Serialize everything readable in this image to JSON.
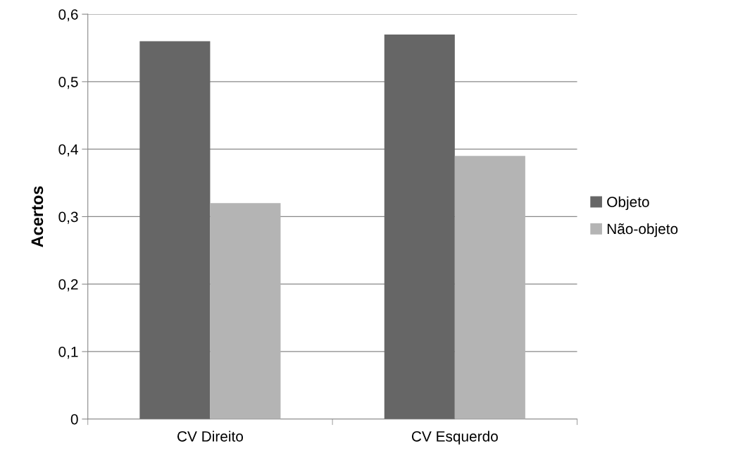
{
  "chart_data": {
    "type": "bar",
    "ylabel": "Acertos",
    "categories": [
      "CV Direito",
      "CV Esquerdo"
    ],
    "series": [
      {
        "name": "Objeto",
        "color": "#666666",
        "values": [
          0.56,
          0.57
        ]
      },
      {
        "name": "Não-objeto",
        "color": "#b4b4b4",
        "values": [
          0.32,
          0.39
        ]
      }
    ],
    "ylim": [
      0,
      0.6
    ],
    "yticks": [
      0,
      {
        "value": 0.1,
        "label": "0,1"
      },
      {
        "value": 0.2,
        "label": "0,2"
      },
      {
        "value": 0.3,
        "label": "0,3"
      },
      {
        "value": 0.4,
        "label": "0,4"
      },
      {
        "value": 0.5,
        "label": "0,5"
      },
      {
        "value": 0.6,
        "label": "0,6"
      }
    ],
    "grid": "y",
    "legend": "right"
  }
}
